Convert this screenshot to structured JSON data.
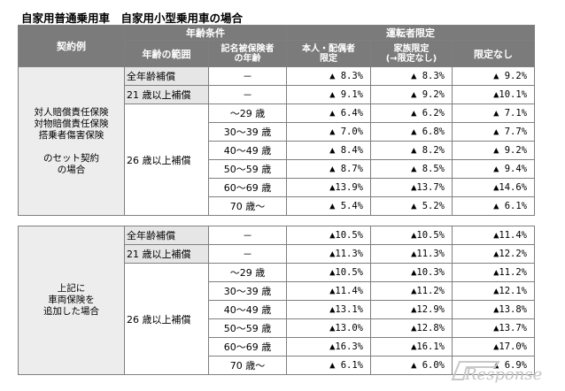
{
  "title": "自家用普通乗用車　自家用小型乗用車の場合",
  "header": {
    "contract_example": "契約例",
    "age_condition": "年齢条件",
    "age_range": "年齢の範囲",
    "insured_age_line1": "記名被保険者",
    "insured_age_line2": "の年齢",
    "driver_limit": "運転者限定",
    "col1_line1": "本人・配偶者",
    "col1_line2": "限定",
    "col2_line1": "家族限定",
    "col2_line2": "(→限定なし)",
    "col3": "限定なし"
  },
  "section1": {
    "label_lines": [
      "対人賠償責任保険",
      "対物賠償責任保険",
      "搭乗者傷害保険",
      "",
      "のセット契約",
      "の場合"
    ],
    "rows": [
      {
        "range": "全年齢補償",
        "age": "－",
        "v1": "▲ 8.3%",
        "v2": "▲ 8.3%",
        "v3": "▲ 9.2%"
      },
      {
        "range": "21 歳以上補償",
        "age": "－",
        "v1": "▲ 9.1%",
        "v2": "▲ 9.2%",
        "v3": "▲10.1%"
      },
      {
        "range": "26 歳以上補償",
        "age": "～29 歳",
        "v1": "▲ 6.4%",
        "v2": "▲ 6.2%",
        "v3": "▲ 7.1%"
      },
      {
        "range": "",
        "age": "30～39 歳",
        "v1": "▲ 7.0%",
        "v2": "▲ 6.8%",
        "v3": "▲ 7.7%"
      },
      {
        "range": "",
        "age": "40～49 歳",
        "v1": "▲ 8.4%",
        "v2": "▲ 8.2%",
        "v3": "▲ 9.2%"
      },
      {
        "range": "",
        "age": "50～59 歳",
        "v1": "▲ 8.7%",
        "v2": "▲ 8.5%",
        "v3": "▲ 9.4%"
      },
      {
        "range": "",
        "age": "60～69 歳",
        "v1": "▲13.9%",
        "v2": "▲13.7%",
        "v3": "▲14.6%"
      },
      {
        "range": "",
        "age": "70 歳～",
        "v1": "▲ 5.4%",
        "v2": "▲ 5.2%",
        "v3": "▲ 6.1%"
      }
    ]
  },
  "section2": {
    "label_lines": [
      "上記に",
      "車両保険を",
      "追加した場合"
    ],
    "rows": [
      {
        "range": "全年齢補償",
        "age": "－",
        "v1": "▲10.5%",
        "v2": "▲10.5%",
        "v3": "▲11.4%"
      },
      {
        "range": "21 歳以上補償",
        "age": "－",
        "v1": "▲11.3%",
        "v2": "▲11.3%",
        "v3": "▲12.2%"
      },
      {
        "range": "26 歳以上補償",
        "age": "～29 歳",
        "v1": "▲10.5%",
        "v2": "▲10.3%",
        "v3": "▲11.2%"
      },
      {
        "range": "",
        "age": "30～39 歳",
        "v1": "▲11.4%",
        "v2": "▲11.2%",
        "v3": "▲12.1%"
      },
      {
        "range": "",
        "age": "40～49 歳",
        "v1": "▲13.1%",
        "v2": "▲12.9%",
        "v3": "▲13.8%"
      },
      {
        "range": "",
        "age": "50～59 歳",
        "v1": "▲13.0%",
        "v2": "▲12.8%",
        "v3": "▲13.7%"
      },
      {
        "range": "",
        "age": "60～69 歳",
        "v1": "▲16.3%",
        "v2": "▲16.1%",
        "v3": "▲17.0%"
      },
      {
        "range": "",
        "age": "70 歳～",
        "v1": "▲ 6.1%",
        "v2": "▲ 6.0%",
        "v3": "▲ 6.9%"
      }
    ]
  },
  "watermark": "Response."
}
